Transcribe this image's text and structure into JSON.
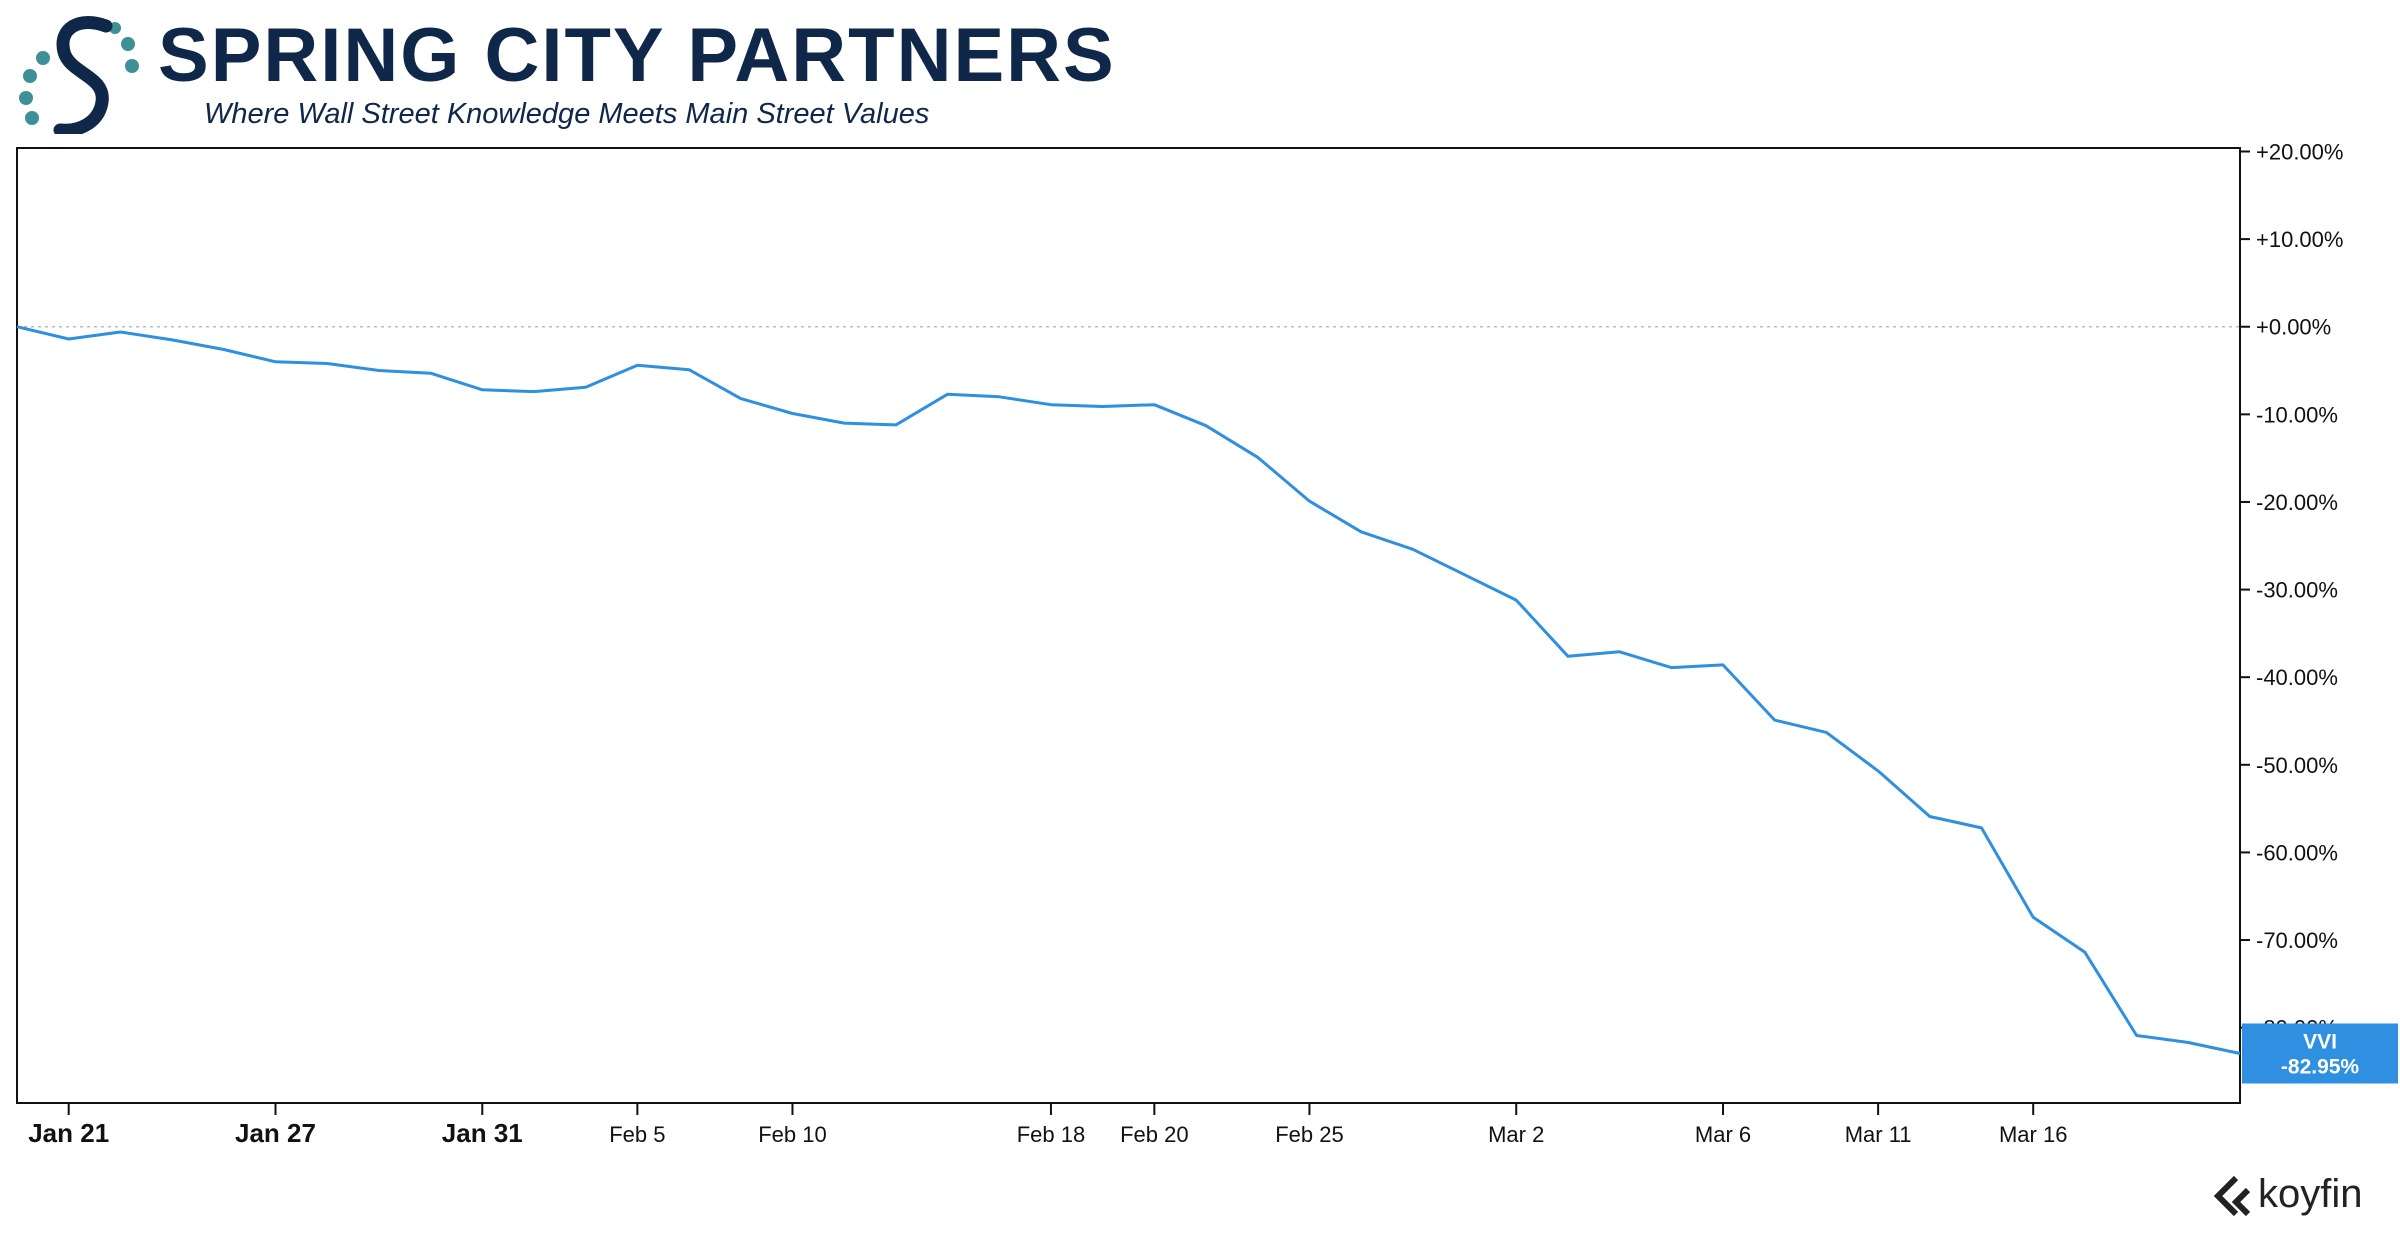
{
  "brand": {
    "name": "SPRING CITY PARTNERS",
    "tagline": "Where Wall Street Knowledge Meets Main Street Values",
    "colors": {
      "navy": "#0f2748",
      "teal": "#3f8f96"
    }
  },
  "watermark": {
    "text": "koyfin",
    "icon": "koyfin-chevron-icon"
  },
  "chart_data": {
    "type": "line",
    "title": "",
    "xlabel": "",
    "ylabel": "",
    "y_unit": "percent",
    "ylim": [
      -88.6,
      20.4
    ],
    "grid": false,
    "zero_line": true,
    "y_ticks": [
      {
        "value": 20,
        "label": "+20.00%"
      },
      {
        "value": 10,
        "label": "+10.00%"
      },
      {
        "value": 0,
        "label": "+0.00%"
      },
      {
        "value": -10,
        "label": "-10.00%"
      },
      {
        "value": -20,
        "label": "-20.00%"
      },
      {
        "value": -30,
        "label": "-30.00%"
      },
      {
        "value": -40,
        "label": "-40.00%"
      },
      {
        "value": -50,
        "label": "-50.00%"
      },
      {
        "value": -60,
        "label": "-60.00%"
      },
      {
        "value": -70,
        "label": "-70.00%"
      },
      {
        "value": -80,
        "label": "-80.00%"
      }
    ],
    "x_ticks": [
      {
        "index": 1,
        "label": "Jan 21",
        "bold": true
      },
      {
        "index": 5,
        "label": "Jan 27",
        "bold": true
      },
      {
        "index": 9,
        "label": "Jan 31",
        "bold": true
      },
      {
        "index": 12,
        "label": "Feb 5",
        "bold": false
      },
      {
        "index": 15,
        "label": "Feb 10",
        "bold": false
      },
      {
        "index": 20,
        "label": "Feb 18",
        "bold": false
      },
      {
        "index": 22,
        "label": "Feb 20",
        "bold": false
      },
      {
        "index": 25,
        "label": "Feb 25",
        "bold": false
      },
      {
        "index": 29,
        "label": "Mar 2",
        "bold": false
      },
      {
        "index": 33,
        "label": "Mar 6",
        "bold": false
      },
      {
        "index": 36,
        "label": "Mar 11",
        "bold": false
      },
      {
        "index": 39,
        "label": "Mar 16",
        "bold": false
      }
    ],
    "n_points": 44,
    "series": [
      {
        "name": "VVI",
        "color": "#2f8fe0",
        "last_value_label": "-82.95%",
        "values": [
          0.0,
          -1.4,
          -0.6,
          -1.5,
          -2.6,
          -4.0,
          -4.2,
          -5.0,
          -5.3,
          -7.2,
          -7.4,
          -6.9,
          -4.4,
          -4.9,
          -8.2,
          -9.9,
          -11.0,
          -11.2,
          -7.7,
          -8.0,
          -8.9,
          -9.1,
          -8.9,
          -11.3,
          -14.9,
          -19.9,
          -23.4,
          -25.4,
          -28.3,
          -31.2,
          -37.6,
          -37.1,
          -38.9,
          -38.6,
          -44.9,
          -46.3,
          -50.7,
          -55.9,
          -57.2,
          -67.4,
          -71.4,
          -80.9,
          -81.7,
          -82.95
        ]
      }
    ]
  }
}
